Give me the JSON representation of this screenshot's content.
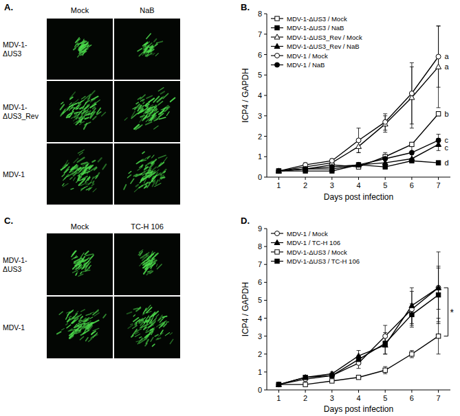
{
  "image_panels": [
    {
      "title": "A.",
      "columns": [
        "Mock",
        "NaB"
      ],
      "rows": [
        [
          "MDV-1-",
          "ΔUS3"
        ],
        [
          "MDV-1-",
          "ΔUS3_Rev"
        ],
        [
          "MDV-1"
        ]
      ]
    },
    {
      "title": "C.",
      "columns": [
        "Mock",
        "TC-H 106"
      ],
      "rows": [
        [
          "MDV-1-",
          "ΔUS3"
        ],
        [
          "MDV-1"
        ]
      ]
    }
  ],
  "chart_data": [
    {
      "type": "line",
      "title": "B.",
      "x_label": "Days post infection",
      "y_label": "ICP4 / GAPDH",
      "x": [
        1,
        2,
        3,
        4,
        5,
        6,
        7
      ],
      "xlim": [
        0.55,
        7.45
      ],
      "xticks": [
        1,
        2,
        3,
        4,
        5,
        6,
        7
      ],
      "ylim": [
        0,
        8
      ],
      "yticks": [
        0,
        1,
        2,
        3,
        4,
        5,
        6,
        7,
        8
      ],
      "grid": false,
      "legend": "top-left",
      "series": [
        {
          "name": "MDV-1-ΔUS3 / Mock",
          "color": "#000000",
          "marker": "square-open",
          "line_style": "solid",
          "annotation": "b",
          "values": [
            0.3,
            0.4,
            0.6,
            0.5,
            1.0,
            1.6,
            3.1
          ],
          "errors": [
            0.05,
            0.05,
            0.1,
            0.1,
            0.1,
            0.1,
            0.1
          ]
        },
        {
          "name": "MDV-1-ΔUS3 / NaB",
          "color": "#000000",
          "marker": "square",
          "line_style": "solid",
          "annotation": "d",
          "values": [
            0.3,
            0.3,
            0.3,
            0.6,
            0.5,
            0.8,
            0.7
          ],
          "errors": [
            0.05,
            0.05,
            0.05,
            0.1,
            0.1,
            0.1,
            0.1
          ]
        },
        {
          "name": "MDV-1-ΔUS3_Rev / Mock",
          "color": "#000000",
          "marker": "triangle-open",
          "line_style": "solid",
          "annotation": "a",
          "values": [
            0.3,
            0.5,
            0.7,
            1.5,
            2.6,
            3.9,
            5.4
          ],
          "errors": [
            0.05,
            0.1,
            0.1,
            0.3,
            0.4,
            1.5,
            2.0
          ]
        },
        {
          "name": "MDV-1-ΔUS3_Rev / NaB",
          "color": "#000000",
          "marker": "triangle",
          "line_style": "solid",
          "annotation": "c",
          "values": [
            0.3,
            0.4,
            0.4,
            0.6,
            0.7,
            0.9,
            1.6
          ],
          "errors": [
            0.05,
            0.05,
            0.1,
            0.1,
            0.2,
            0.2,
            0.3
          ]
        },
        {
          "name": "MDV-1 / Mock",
          "color": "#000000",
          "marker": "circle-open",
          "line_style": "solid",
          "annotation": "a",
          "values": [
            0.3,
            0.6,
            0.8,
            1.8,
            2.7,
            4.1,
            5.9
          ],
          "errors": [
            0.05,
            0.1,
            0.1,
            0.6,
            0.4,
            1.5,
            1.5
          ]
        },
        {
          "name": "MDV-1 / NaB",
          "color": "#000000",
          "marker": "circle",
          "line_style": "solid",
          "annotation": "c",
          "values": [
            0.3,
            0.4,
            0.5,
            0.6,
            0.9,
            1.2,
            1.8
          ],
          "errors": [
            0.05,
            0.1,
            0.1,
            0.1,
            0.3,
            0.4,
            0.3
          ]
        }
      ]
    },
    {
      "type": "line",
      "title": "D.",
      "x_label": "Days post infection",
      "y_label": "ICP4 / GAPDH",
      "x": [
        1,
        2,
        3,
        4,
        5,
        6,
        7
      ],
      "xlim": [
        0.55,
        7.45
      ],
      "xticks": [
        1,
        2,
        3,
        4,
        5,
        6,
        7
      ],
      "ylim": [
        0,
        9
      ],
      "yticks": [
        0,
        1,
        2,
        3,
        4,
        5,
        6,
        7,
        8,
        9
      ],
      "grid": false,
      "legend": "top-left",
      "annotations": [
        {
          "text": "*"
        }
      ],
      "series": [
        {
          "name": "MDV-1 / Mock",
          "color": "#000000",
          "marker": "circle-open",
          "line_style": "solid",
          "values": [
            0.3,
            0.6,
            0.8,
            1.5,
            3.0,
            4.5,
            5.7
          ],
          "errors": [
            0.1,
            0.1,
            0.1,
            0.3,
            0.6,
            1.0,
            1.2
          ]
        },
        {
          "name": "MDV-1 / TC-H 106",
          "color": "#000000",
          "marker": "triangle",
          "line_style": "solid",
          "values": [
            0.3,
            0.7,
            0.9,
            1.9,
            2.5,
            4.7,
            5.7
          ],
          "errors": [
            0.1,
            0.1,
            0.1,
            0.3,
            0.5,
            1.0,
            2.0
          ]
        },
        {
          "name": "MDV-1-ΔUS3 / Mock",
          "color": "#000000",
          "marker": "square-open",
          "line_style": "solid",
          "values": [
            0.3,
            0.3,
            0.5,
            0.7,
            1.1,
            2.0,
            3.0
          ],
          "errors": [
            0.1,
            0.05,
            0.1,
            0.1,
            0.2,
            0.2,
            1.0
          ]
        },
        {
          "name": "MDV-1-ΔUS3 / TC-H 106",
          "color": "#000000",
          "marker": "square",
          "line_style": "solid",
          "values": [
            0.3,
            0.7,
            0.8,
            1.7,
            2.6,
            4.2,
            5.3
          ],
          "errors": [
            0.1,
            0.1,
            0.1,
            0.2,
            0.6,
            0.6,
            1.5
          ]
        }
      ]
    }
  ]
}
